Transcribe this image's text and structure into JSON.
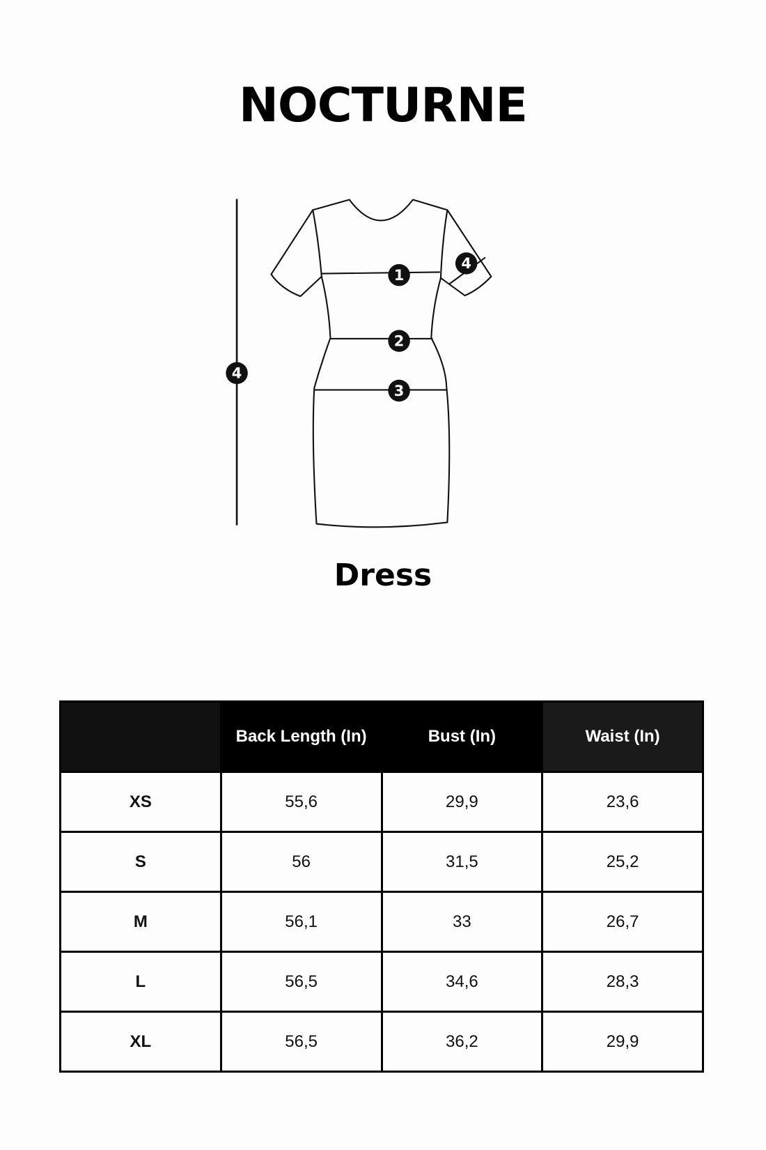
{
  "brand": "NOCTURNE",
  "garment": "Dress",
  "diagram": {
    "markers": [
      "1",
      "2",
      "3",
      "4",
      "4"
    ]
  },
  "table": {
    "headers": [
      "",
      "Back Length (In)",
      "Bust (In)",
      "Waist (In)"
    ],
    "header_colors": [
      "#111111",
      "#000000",
      "#000000",
      "#1a1a1a"
    ],
    "rows": [
      [
        "XS",
        "55,6",
        "29,9",
        "23,6"
      ],
      [
        "S",
        "56",
        "31,5",
        "25,2"
      ],
      [
        "M",
        "56,1",
        "33",
        "26,7"
      ],
      [
        "L",
        "56,5",
        "34,6",
        "28,3"
      ],
      [
        "XL",
        "56,5",
        "36,2",
        "29,9"
      ]
    ]
  }
}
